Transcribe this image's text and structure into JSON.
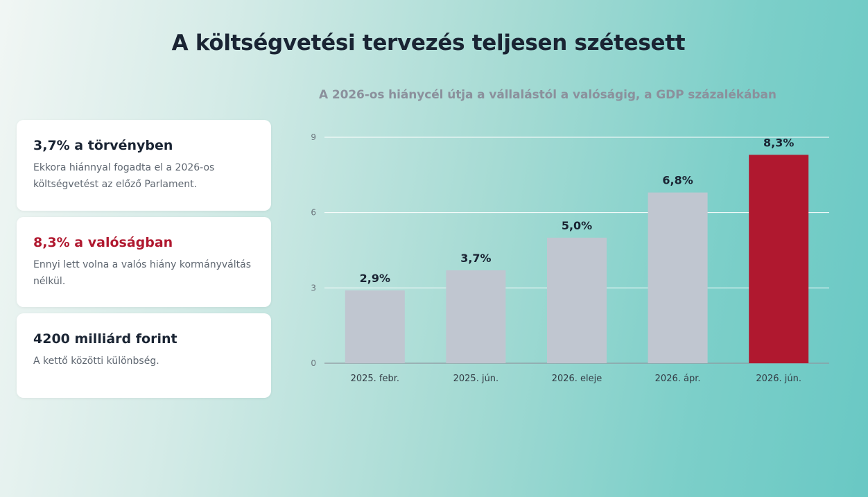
{
  "page": {
    "title": "A költségvetési tervezés teljesen szétesett"
  },
  "cards": [
    {
      "heading": "3,7% a törvényben",
      "text": "Ekkora hiánnyal fogadta el a 2026-os költségvetést az előző Parlament."
    },
    {
      "heading": "8,3% a valóságban",
      "text": "Ennyi lett volna a valós hiány kormányváltás nélkül."
    },
    {
      "heading": "4200 milliárd forint",
      "text": "A kettő közötti különbség."
    }
  ],
  "colors": {
    "bar_default": "#c0c6d0",
    "bar_highlight": "#b0182f",
    "accent_text": "#b0182f",
    "gridline": "#ffffff"
  },
  "chart_data": {
    "type": "bar",
    "title": "A 2026-os hiánycél útja a vállalástól a valóságig, a GDP százalékában",
    "categories": [
      "2025. febr.",
      "2025. jún.",
      "2026. eleje",
      "2026. ápr.",
      "2026. jún."
    ],
    "values": [
      2.9,
      3.7,
      5.0,
      6.8,
      8.3
    ],
    "value_labels": [
      "2,9%",
      "3,7%",
      "5,0%",
      "6,8%",
      "8,3%"
    ],
    "highlight_index": 4,
    "ylim": [
      0,
      9
    ],
    "yticks": [
      0,
      3,
      6,
      9
    ],
    "grid": true,
    "xlabel": "",
    "ylabel": ""
  }
}
